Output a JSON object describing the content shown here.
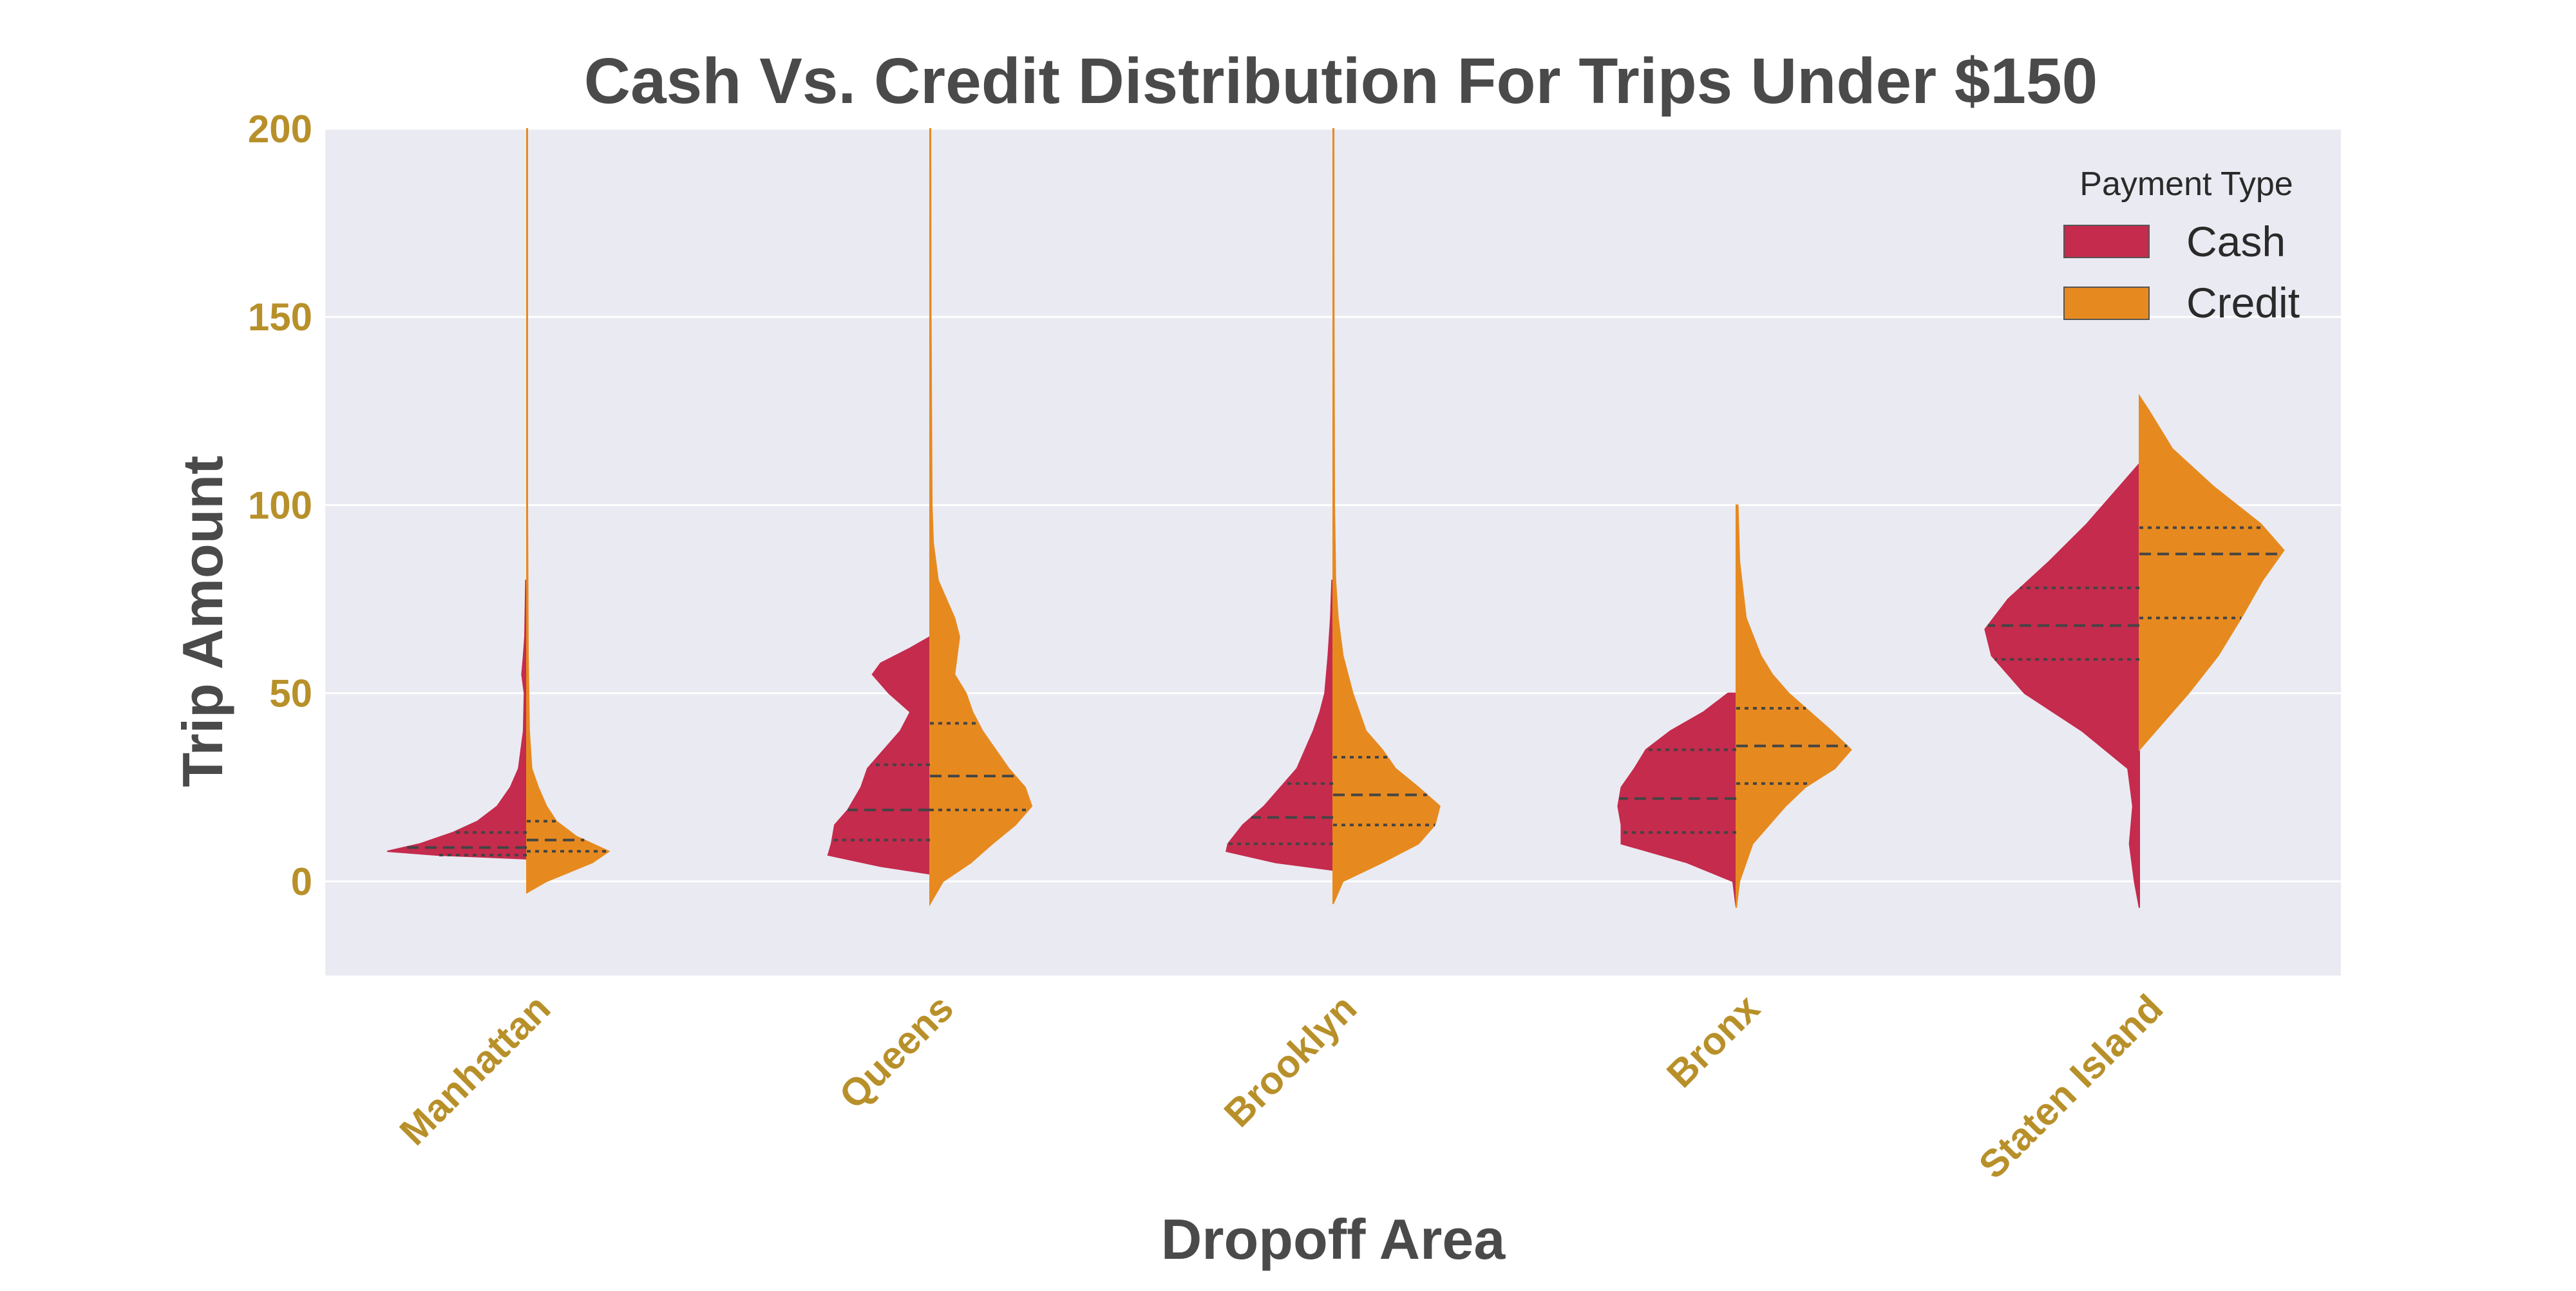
{
  "chart_data": {
    "type": "violin",
    "split": true,
    "title": "Cash Vs. Credit Distribution For Trips Under $150",
    "xlabel": "Dropoff Area",
    "ylabel": "Trip Amount",
    "categories": [
      "Manhattan",
      "Queens",
      "Brooklyn",
      "Bronx",
      "Staten Island"
    ],
    "ylim": [
      -25,
      200
    ],
    "yticks": [
      0,
      50,
      100,
      150,
      200
    ],
    "grid": true,
    "legend": {
      "title": "Payment Type",
      "position": "top-right"
    },
    "colors": {
      "Cash": "#c42b4d",
      "Credit": "#e68a1f",
      "tick_label": "#b8902a",
      "background": "#eaeaf2",
      "text": "#4a4a4a"
    },
    "series": [
      {
        "name": "Cash",
        "quartiles": [
          [
            7,
            9,
            13
          ],
          [
            11,
            19,
            31
          ],
          [
            10,
            17,
            26
          ],
          [
            13,
            22,
            35
          ],
          [
            59,
            68,
            78
          ]
        ],
        "range": [
          [
            6,
            80
          ],
          [
            2,
            65
          ],
          [
            3,
            80
          ],
          [
            -7,
            50
          ],
          [
            -7,
            111
          ]
        ],
        "profile": [
          [
            [
              6,
              0.0
            ],
            [
              7,
              0.55
            ],
            [
              8,
              0.85
            ],
            [
              10,
              0.65
            ],
            [
              13,
              0.45
            ],
            [
              16,
              0.3
            ],
            [
              20,
              0.18
            ],
            [
              25,
              0.1
            ],
            [
              30,
              0.05
            ],
            [
              40,
              0.02
            ],
            [
              50,
              0.015
            ],
            [
              55,
              0.03
            ],
            [
              60,
              0.02
            ],
            [
              65,
              0.012
            ],
            [
              70,
              0.01
            ],
            [
              80,
              0.006
            ]
          ],
          [
            [
              2,
              0.0
            ],
            [
              4,
              0.3
            ],
            [
              7,
              0.62
            ],
            [
              10,
              0.6
            ],
            [
              15,
              0.58
            ],
            [
              19,
              0.5
            ],
            [
              25,
              0.42
            ],
            [
              30,
              0.38
            ],
            [
              35,
              0.28
            ],
            [
              40,
              0.18
            ],
            [
              45,
              0.12
            ],
            [
              50,
              0.25
            ],
            [
              55,
              0.35
            ],
            [
              58,
              0.3
            ],
            [
              62,
              0.12
            ],
            [
              65,
              0.0
            ]
          ],
          [
            [
              3,
              0.0
            ],
            [
              5,
              0.35
            ],
            [
              8,
              0.65
            ],
            [
              10,
              0.64
            ],
            [
              15,
              0.55
            ],
            [
              20,
              0.42
            ],
            [
              26,
              0.3
            ],
            [
              30,
              0.22
            ],
            [
              35,
              0.17
            ],
            [
              40,
              0.12
            ],
            [
              45,
              0.08
            ],
            [
              50,
              0.05
            ],
            [
              60,
              0.03
            ],
            [
              70,
              0.015
            ],
            [
              80,
              0.007
            ]
          ],
          [
            [
              -7,
              0.0
            ],
            [
              0,
              0.02
            ],
            [
              5,
              0.3
            ],
            [
              10,
              0.7
            ],
            [
              15,
              0.7
            ],
            [
              20,
              0.72
            ],
            [
              25,
              0.7
            ],
            [
              30,
              0.62
            ],
            [
              35,
              0.55
            ],
            [
              40,
              0.4
            ],
            [
              45,
              0.2
            ],
            [
              50,
              0.05
            ]
          ],
          [
            [
              -7,
              0.0
            ],
            [
              0,
              0.03
            ],
            [
              10,
              0.06
            ],
            [
              20,
              0.04
            ],
            [
              30,
              0.07
            ],
            [
              40,
              0.35
            ],
            [
              50,
              0.7
            ],
            [
              60,
              0.9
            ],
            [
              67,
              0.94
            ],
            [
              75,
              0.8
            ],
            [
              85,
              0.55
            ],
            [
              95,
              0.32
            ],
            [
              105,
              0.12
            ],
            [
              111,
              0.0
            ]
          ]
        ]
      },
      {
        "name": "Credit",
        "quartiles": [
          [
            8,
            11,
            16
          ],
          [
            19,
            28,
            42
          ],
          [
            15,
            23,
            33
          ],
          [
            26,
            36,
            46
          ],
          [
            70,
            87,
            94
          ]
        ],
        "range": [
          [
            -3,
            200
          ],
          [
            -6,
            200
          ],
          [
            -6,
            200
          ],
          [
            -7,
            100
          ],
          [
            35,
            129
          ]
        ],
        "profile": [
          [
            [
              -3,
              0.0
            ],
            [
              0,
              0.12
            ],
            [
              5,
              0.4
            ],
            [
              8,
              0.5
            ],
            [
              12,
              0.3
            ],
            [
              16,
              0.18
            ],
            [
              20,
              0.12
            ],
            [
              25,
              0.07
            ],
            [
              30,
              0.03
            ],
            [
              40,
              0.015
            ],
            [
              60,
              0.008
            ],
            [
              80,
              0.006
            ],
            [
              100,
              0.004
            ],
            [
              150,
              0.004
            ],
            [
              200,
              0.004
            ]
          ],
          [
            [
              -6,
              0.0
            ],
            [
              0,
              0.08
            ],
            [
              5,
              0.25
            ],
            [
              10,
              0.38
            ],
            [
              15,
              0.52
            ],
            [
              20,
              0.62
            ],
            [
              25,
              0.58
            ],
            [
              30,
              0.48
            ],
            [
              35,
              0.4
            ],
            [
              40,
              0.32
            ],
            [
              45,
              0.26
            ],
            [
              50,
              0.22
            ],
            [
              55,
              0.15
            ],
            [
              65,
              0.18
            ],
            [
              70,
              0.15
            ],
            [
              75,
              0.1
            ],
            [
              80,
              0.05
            ],
            [
              90,
              0.02
            ],
            [
              100,
              0.012
            ],
            [
              150,
              0.006
            ],
            [
              200,
              0.004
            ]
          ],
          [
            [
              -6,
              0.0
            ],
            [
              0,
              0.06
            ],
            [
              5,
              0.3
            ],
            [
              10,
              0.52
            ],
            [
              15,
              0.62
            ],
            [
              20,
              0.65
            ],
            [
              25,
              0.52
            ],
            [
              30,
              0.38
            ],
            [
              35,
              0.3
            ],
            [
              40,
              0.2
            ],
            [
              50,
              0.12
            ],
            [
              60,
              0.06
            ],
            [
              70,
              0.03
            ],
            [
              80,
              0.015
            ],
            [
              100,
              0.008
            ],
            [
              150,
              0.005
            ],
            [
              200,
              0.004
            ]
          ],
          [
            [
              -7,
              0.0
            ],
            [
              0,
              0.02
            ],
            [
              10,
              0.1
            ],
            [
              20,
              0.3
            ],
            [
              25,
              0.42
            ],
            [
              30,
              0.6
            ],
            [
              35,
              0.7
            ],
            [
              40,
              0.58
            ],
            [
              45,
              0.45
            ],
            [
              50,
              0.32
            ],
            [
              55,
              0.22
            ],
            [
              60,
              0.15
            ],
            [
              70,
              0.06
            ],
            [
              85,
              0.02
            ],
            [
              100,
              0.01
            ]
          ],
          [
            [
              35,
              0.0
            ],
            [
              40,
              0.1
            ],
            [
              50,
              0.3
            ],
            [
              60,
              0.48
            ],
            [
              70,
              0.62
            ],
            [
              80,
              0.75
            ],
            [
              88,
              0.88
            ],
            [
              95,
              0.74
            ],
            [
              105,
              0.45
            ],
            [
              115,
              0.2
            ],
            [
              125,
              0.06
            ],
            [
              129,
              0.0
            ]
          ]
        ]
      }
    ]
  }
}
